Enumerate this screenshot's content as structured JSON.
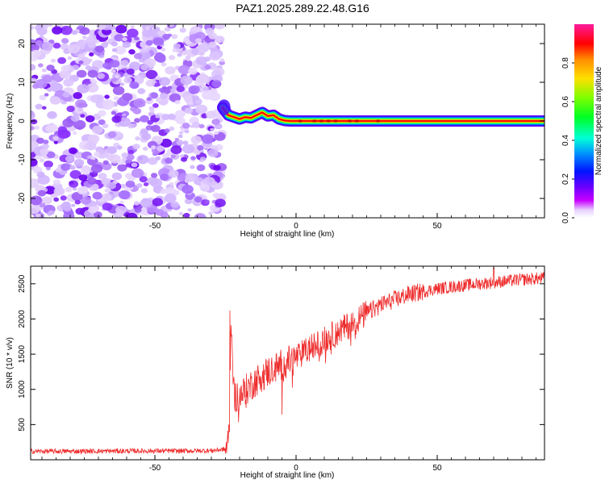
{
  "title": "PAZ1.2025.289.22.48.G16",
  "chart_data": [
    {
      "type": "heatmap",
      "title": "PAZ1.2025.289.22.48.G16",
      "xlabel": "Height of straight line (km)",
      "ylabel": "Frequency (Hz)",
      "xlim": [
        -94,
        88
      ],
      "ylim": [
        -25,
        25
      ],
      "xticks": [
        -50,
        0,
        50
      ],
      "xtick_labels": [
        "-50",
        "0",
        "50"
      ],
      "yticks": [
        -20,
        -10,
        0,
        10,
        20
      ],
      "ytick_labels": [
        "-20",
        "-10",
        "0",
        "10",
        "20"
      ],
      "noise_region": {
        "x": [
          -94,
          -26
        ],
        "y": [
          -25,
          25
        ]
      },
      "signal_track": {
        "x": [
          -26,
          -24,
          -22,
          -20,
          -18,
          -16,
          -14,
          -12,
          -10,
          -8,
          -6,
          -4,
          -2,
          0,
          5,
          10,
          20,
          40,
          60,
          88
        ],
        "freq": [
          3.5,
          1.5,
          1.0,
          0.5,
          1.0,
          0.8,
          1.5,
          2.2,
          1.3,
          1.5,
          0.5,
          0.1,
          0.0,
          0.0,
          0.0,
          0.0,
          0.0,
          0.0,
          0.0,
          0.0
        ]
      },
      "colorbar": {
        "label": "Normalized spectral amplitude",
        "range": [
          0,
          1
        ],
        "ticks": [
          0.0,
          0.2,
          0.4,
          0.6,
          0.8
        ],
        "tick_labels": [
          "0.0",
          "0.2",
          "0.4",
          "0.6",
          "0.8"
        ],
        "colors": [
          "#ffffff",
          "#ff1b9b",
          "#ff0000",
          "#ff8a00",
          "#ffe000",
          "#7dff00",
          "#00ff24",
          "#00ffd8",
          "#0090ff",
          "#0014ff",
          "#6a00ff",
          "#c800ff",
          "#ff2de6"
        ]
      }
    },
    {
      "type": "line",
      "xlabel": "Height of straight line (km)",
      "ylabel": "SNR (10 * v/v)",
      "xlim": [
        -94,
        88
      ],
      "ylim": [
        0,
        2750
      ],
      "xticks": [
        -50,
        0,
        50
      ],
      "xtick_labels": [
        "-50",
        "0",
        "50"
      ],
      "yticks": [
        500,
        1000,
        1500,
        2000,
        2500
      ],
      "ytick_labels": [
        "500",
        "1000",
        "1500",
        "2000",
        "2500"
      ],
      "series": [
        {
          "name": "SNR",
          "color": "#ee2c2c",
          "x": [
            -94,
            -80,
            -60,
            -40,
            -30,
            -25,
            -24,
            -23.5,
            -23,
            -22,
            -20,
            -15,
            -10,
            -5,
            0,
            5,
            10,
            15,
            20,
            25,
            30,
            40,
            50,
            60,
            70,
            80,
            88
          ],
          "y": [
            120,
            120,
            125,
            125,
            130,
            150,
            260,
            600,
            2100,
            900,
            900,
            1100,
            1250,
            1350,
            1450,
            1580,
            1700,
            1820,
            1940,
            2080,
            2200,
            2350,
            2430,
            2480,
            2520,
            2560,
            2580
          ]
        }
      ],
      "spikes": [
        {
          "x": -23.4,
          "y": 2120
        },
        {
          "x": -5.0,
          "y": 640
        },
        {
          "x": 70.0,
          "y": 2730
        }
      ]
    }
  ]
}
